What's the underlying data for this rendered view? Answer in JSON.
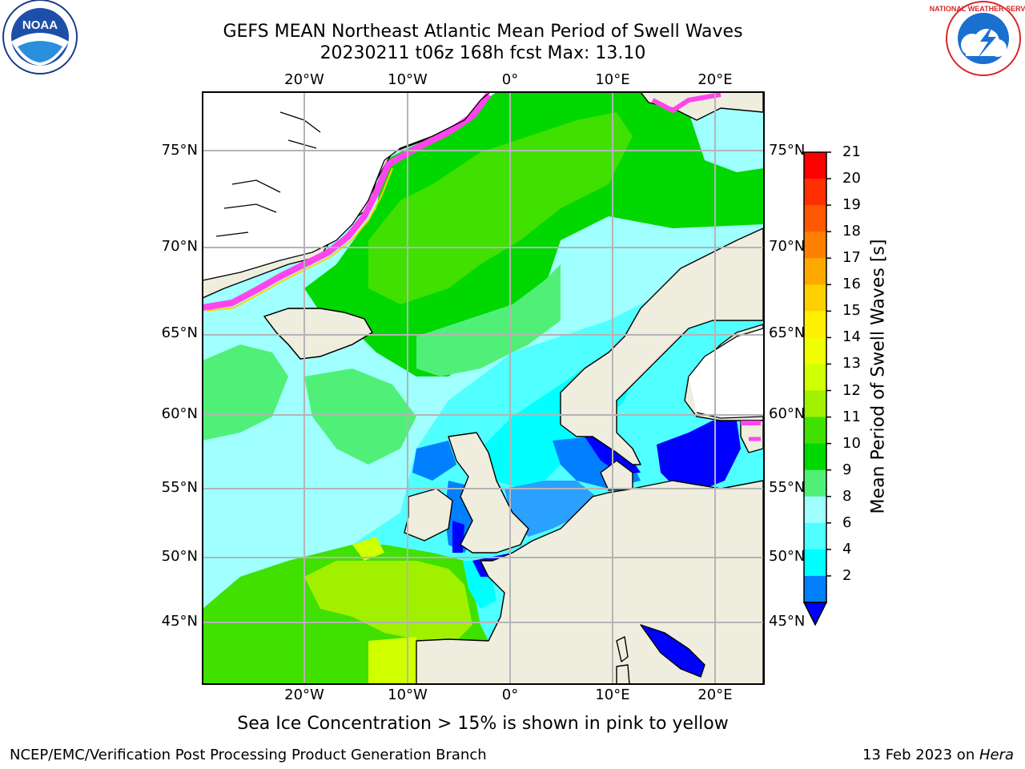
{
  "title": {
    "line1": "GEFS MEAN Northeast Atlantic Mean Period of Swell Waves",
    "line2": "20230211 t06z 168h fcst   Max: 13.10"
  },
  "map": {
    "lon_labels": [
      "20°W",
      "10°W",
      "0°",
      "10°E",
      "20°E"
    ],
    "lat_labels": [
      "75°N",
      "70°N",
      "65°N",
      "60°N",
      "55°N",
      "50°N",
      "45°N"
    ],
    "lon_range": [
      -30,
      25
    ],
    "lat_range": [
      41,
      78
    ],
    "colors": {
      "land": "#efedde",
      "ice_free": "#ffffff",
      "grid": "#b4b4b4",
      "ice": "#ff44ee"
    }
  },
  "colorbar": {
    "title": "Mean Period of Swell Waves [s]",
    "ticks": [
      "21",
      "20",
      "19",
      "18",
      "17",
      "16",
      "15",
      "14",
      "13",
      "12",
      "11",
      "10",
      "9",
      "8",
      "6",
      "4",
      "2"
    ],
    "colors": [
      "#ff0000",
      "#ff3000",
      "#ff5800",
      "#ff8000",
      "#ffa800",
      "#ffd000",
      "#fff000",
      "#f0ff00",
      "#d0ff00",
      "#a0f000",
      "#40e000",
      "#00d800",
      "#50f078",
      "#a0ffff",
      "#50ffff",
      "#00ffff",
      "#0080ff"
    ],
    "extend_color": "#0000ff"
  },
  "note": "Sea Ice Concentration > 15% is shown in pink to yellow",
  "footer": {
    "left": "NCEP/EMC/Verification Post Processing Product Generation Branch",
    "date": "13 Feb 2023 on ",
    "host": "Hera"
  },
  "logos": {
    "noaa_text": "NOAA",
    "nws_text": "NATIONAL WEATHER SERVICE"
  }
}
